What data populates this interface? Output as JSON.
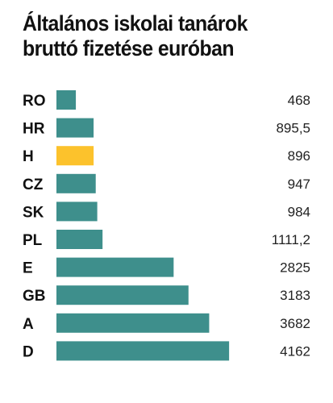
{
  "chart_data": {
    "type": "bar",
    "orientation": "horizontal",
    "title": "Általános iskolai tanárok\nbruttó fizetése euróban",
    "categories": [
      "RO",
      "HR",
      "H",
      "CZ",
      "SK",
      "PL",
      "E",
      "GB",
      "A",
      "D"
    ],
    "values": [
      468,
      895.5,
      896,
      947,
      984,
      1111.2,
      2825,
      3183,
      3682,
      4162
    ],
    "value_labels": [
      "468",
      "895,5",
      "896",
      "947",
      "984",
      "1111,2",
      "2825",
      "3183",
      "3682",
      "4162"
    ],
    "highlight_category": "H",
    "xlabel": "",
    "ylabel": "",
    "grid": false,
    "legend": "none",
    "colors": {
      "bar": "#3e8f8c",
      "highlight": "#fcc22c",
      "text": "#111111"
    }
  }
}
